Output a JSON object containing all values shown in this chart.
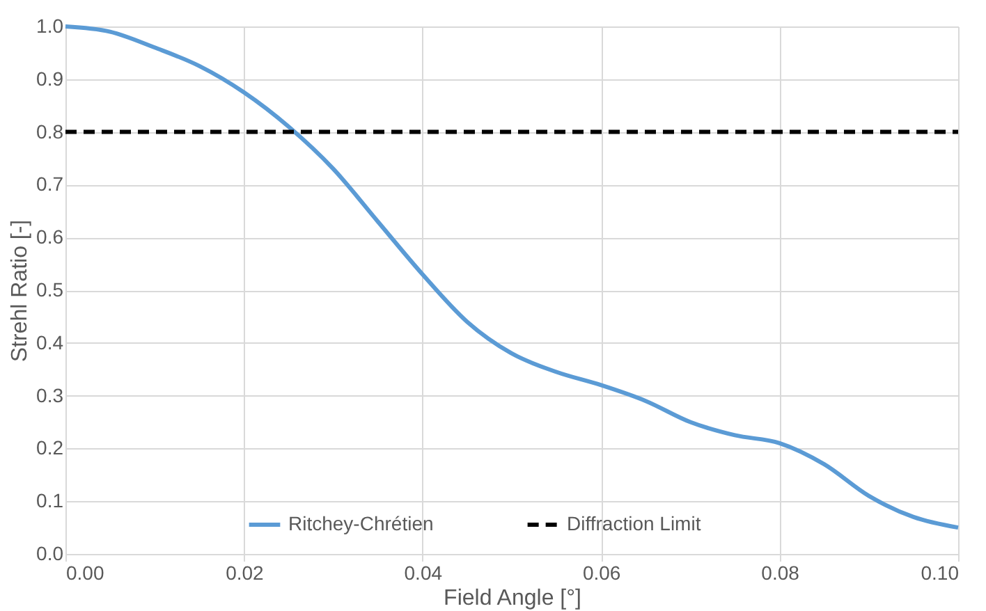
{
  "chart_data": {
    "type": "line",
    "xlabel": "Field Angle [°]",
    "ylabel": "Strehl Ratio [-]",
    "xlim": [
      0,
      0.1
    ],
    "xticks": [
      {
        "value": 0,
        "label": "0.00"
      },
      {
        "value": 0.02,
        "label": "0.02"
      },
      {
        "value": 0.04,
        "label": "0.04"
      },
      {
        "value": 0.06,
        "label": "0.06"
      },
      {
        "value": 0.08,
        "label": "0.08"
      },
      {
        "value": 0.1,
        "label": "0.10"
      }
    ],
    "ylim": [
      0,
      1
    ],
    "yticks": [
      {
        "value": 0,
        "label": "0.0"
      },
      {
        "value": 0.1,
        "label": "0.1"
      },
      {
        "value": 0.2,
        "label": "0.2"
      },
      {
        "value": 0.3,
        "label": "0.3"
      },
      {
        "value": 0.4,
        "label": "0.4"
      },
      {
        "value": 0.5,
        "label": "0.5"
      },
      {
        "value": 0.6,
        "label": "0.6"
      },
      {
        "value": 0.7,
        "label": "0.7"
      },
      {
        "value": 0.8,
        "label": "0.8"
      },
      {
        "value": 0.9,
        "label": "0.9"
      },
      {
        "value": 1,
        "label": "1.0"
      }
    ],
    "grid": true,
    "legend": "bottom",
    "marker": "none",
    "series": [
      {
        "name": "Ritchey-Chrétien",
        "color": "#5b9bd5",
        "line_style": "solid",
        "x": [
          0,
          0.005,
          0.01,
          0.015,
          0.02,
          0.025,
          0.03,
          0.035,
          0.04,
          0.045,
          0.05,
          0.055,
          0.06,
          0.065,
          0.07,
          0.075,
          0.08,
          0.085,
          0.09,
          0.095,
          0.1
        ],
        "values": [
          1.0,
          0.99,
          0.96,
          0.925,
          0.875,
          0.81,
          0.73,
          0.63,
          0.53,
          0.44,
          0.38,
          0.345,
          0.32,
          0.29,
          0.25,
          0.225,
          0.21,
          0.17,
          0.11,
          0.07,
          0.05
        ]
      },
      {
        "name": "Diffraction Limit",
        "color": "#000000",
        "line_style": "dashed",
        "x": [
          0,
          0.1
        ],
        "values": [
          0.8,
          0.8
        ]
      }
    ]
  }
}
